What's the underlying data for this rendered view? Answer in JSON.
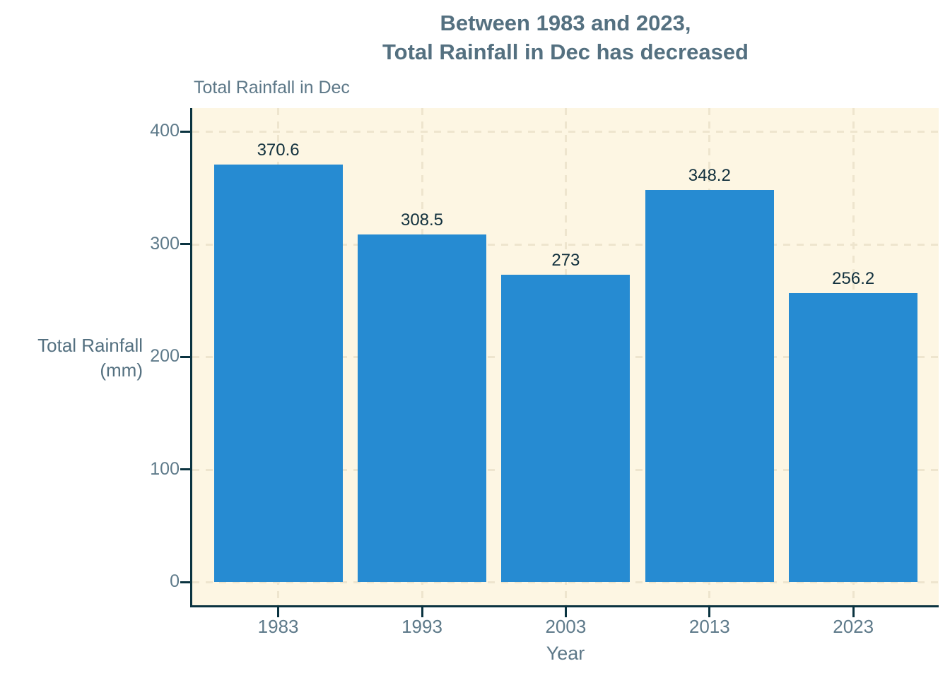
{
  "title": {
    "line1": "Between 1983 and 2023,",
    "line2": "Total Rainfall in Dec has decreased"
  },
  "subtitle": "Total Rainfall in Dec",
  "y_axis_title": {
    "line1": "Total Rainfall",
    "line2": "(mm)"
  },
  "x_axis_title": "Year",
  "chart_data": {
    "type": "bar",
    "title": "Between 1983 and 2023, Total Rainfall in Dec has decreased",
    "subtitle": "Total Rainfall in Dec",
    "xlabel": "Year",
    "ylabel": "Total Rainfall (mm)",
    "categories": [
      "1983",
      "1993",
      "2003",
      "2013",
      "2023"
    ],
    "values": [
      370.6,
      308.5,
      273,
      348.2,
      256.2
    ],
    "bar_labels": [
      "370.6",
      "308.5",
      "273",
      "348.2",
      "256.2"
    ],
    "yticks": [
      0,
      100,
      200,
      300,
      400
    ],
    "ylim": [
      0,
      420
    ],
    "grid": "dashed, horizontal and vertical",
    "legend": "none"
  },
  "colors": {
    "background": "#ffffff",
    "plot_background": "#fdf6e3",
    "gridline": "#eee5ce",
    "bar": "#268bd2",
    "axis_line": "#0a3340",
    "tick_label": "#5e7a8a",
    "title_text": "#547080",
    "subtitle_text": "#5d7888",
    "bar_label_text": "#11303d"
  }
}
